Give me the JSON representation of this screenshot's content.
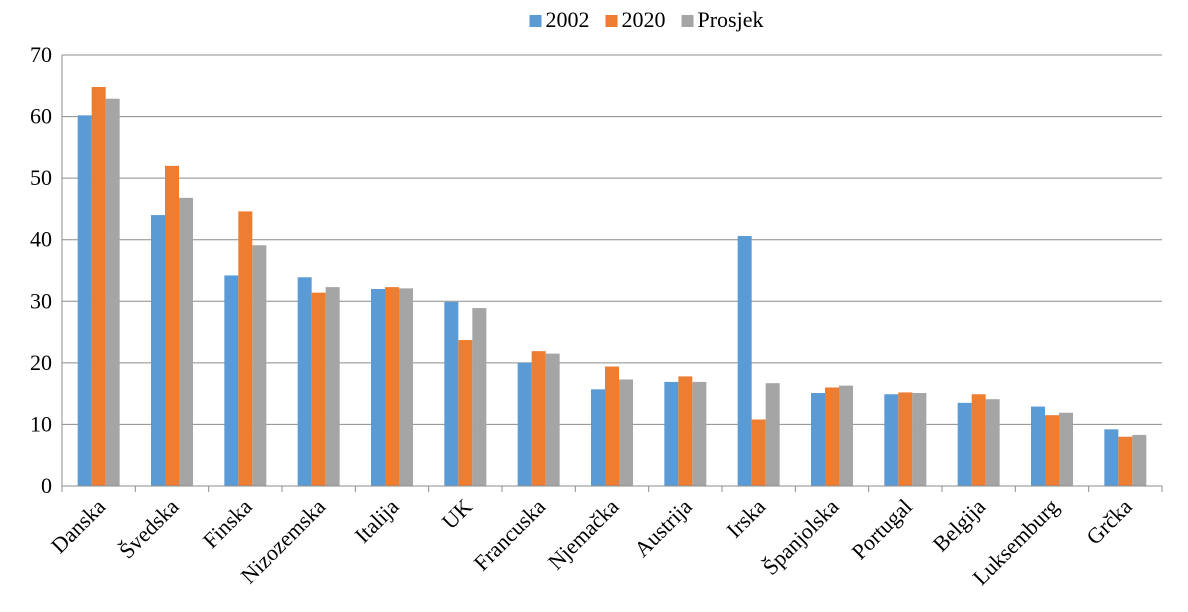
{
  "chart_data": {
    "type": "bar",
    "categories": [
      "Danska",
      "Švedska",
      "Finska",
      "Nizozemska",
      "Italija",
      "UK",
      "Francuska",
      "Njemačka",
      "Austrija",
      "Irska",
      "Španjolska",
      "Portugal",
      "Belgija",
      "Luksemburg",
      "Grčka"
    ],
    "series": [
      {
        "name": "2002",
        "color": "#5B9BD5",
        "values": [
          60.2,
          44.0,
          34.2,
          33.9,
          32.0,
          29.9,
          20.0,
          15.7,
          16.9,
          40.6,
          15.1,
          14.9,
          13.5,
          12.9,
          9.2
        ]
      },
      {
        "name": "2020",
        "color": "#ED7D31",
        "values": [
          64.8,
          52.0,
          44.6,
          31.4,
          32.3,
          23.7,
          21.9,
          19.4,
          17.8,
          10.8,
          16.0,
          15.2,
          14.9,
          11.5,
          8.0
        ]
      },
      {
        "name": "Prosjek",
        "color": "#A5A5A5",
        "values": [
          62.9,
          46.8,
          39.1,
          32.3,
          32.1,
          28.9,
          21.5,
          17.3,
          16.9,
          16.7,
          16.3,
          15.1,
          14.1,
          11.9,
          8.3
        ]
      }
    ],
    "ylim": [
      0,
      70
    ],
    "yticks": [
      0,
      10,
      20,
      30,
      40,
      50,
      60,
      70
    ],
    "grid": true,
    "legend": "top-center",
    "title": "",
    "xlabel": "",
    "ylabel": ""
  }
}
